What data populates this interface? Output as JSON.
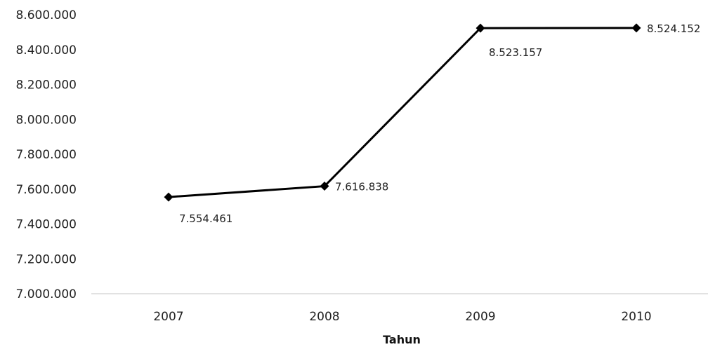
{
  "chart_data": {
    "type": "line",
    "title": "",
    "xlabel": "Tahun",
    "ylabel": "",
    "categories": [
      "2007",
      "2008",
      "2009",
      "2010"
    ],
    "series": [
      {
        "values": [
          7554461,
          7616838,
          8523157,
          8524152
        ],
        "data_labels": [
          "7.554.461",
          "7.616.838",
          "8.523.157",
          "8.524.152"
        ],
        "color": "#000000",
        "marker": "diamond"
      }
    ],
    "ylim": [
      7000000,
      8600000
    ],
    "yticks": [
      7000000,
      7200000,
      7400000,
      7600000,
      7800000,
      8000000,
      8200000,
      8400000,
      8600000
    ],
    "ytick_labels": [
      "7.000.000",
      "7.200.000",
      "7.400.000",
      "7.600.000",
      "7.800.000",
      "8.000.000",
      "8.200.000",
      "8.400.000",
      "8.600.000"
    ],
    "grid": false,
    "legend": "none"
  }
}
